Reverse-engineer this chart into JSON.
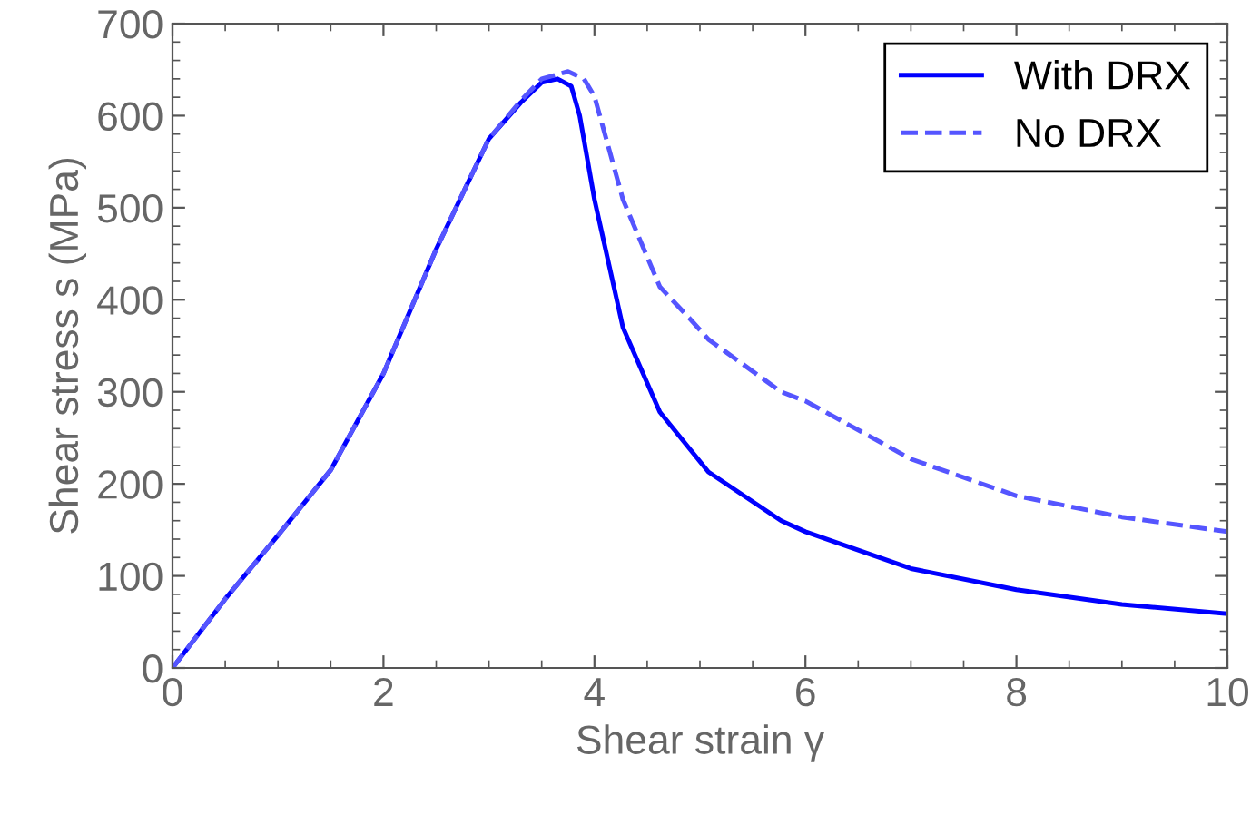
{
  "chart_data": {
    "type": "line",
    "xlabel": "Shear strain γ",
    "ylabel": "Shear stress s (MPa)",
    "xlim": [
      0,
      10
    ],
    "ylim": [
      0,
      700
    ],
    "xticks": [
      0,
      2,
      4,
      6,
      8,
      10
    ],
    "yticks": [
      0,
      100,
      200,
      300,
      400,
      500,
      600,
      700
    ],
    "grid": false,
    "legend": "top right",
    "series": [
      {
        "name": "With DRX",
        "color": "#0000ff",
        "line_style": "solid",
        "x": [
          0,
          0.5,
          1,
          1.5,
          2,
          2.5,
          3,
          3.3,
          3.5,
          3.65,
          3.78,
          3.86,
          4.0,
          4.27,
          4.62,
          5.08,
          5.77,
          6,
          7,
          8,
          9,
          10
        ],
        "values": [
          0,
          75,
          144,
          215,
          320,
          455,
          575,
          614,
          636,
          640,
          632,
          600,
          509,
          370,
          278,
          213,
          160,
          148,
          108,
          85,
          69,
          59
        ]
      },
      {
        "name": "No DRX",
        "color": "#5555ff",
        "line_style": "dashed",
        "x": [
          0,
          0.5,
          1,
          1.5,
          2,
          2.5,
          3,
          3.3,
          3.5,
          3.75,
          3.9,
          4.0,
          4.27,
          4.62,
          4.9,
          5.08,
          5.77,
          6,
          7,
          8,
          9,
          10
        ],
        "values": [
          0,
          75,
          144,
          215,
          320,
          455,
          575,
          616,
          640,
          648,
          640,
          621,
          509,
          414,
          380,
          357,
          300,
          290,
          227,
          187,
          164,
          148
        ]
      }
    ]
  }
}
